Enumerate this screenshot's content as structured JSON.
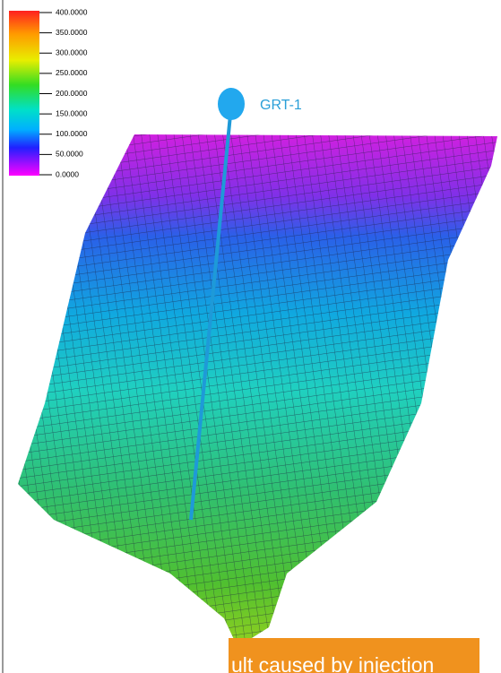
{
  "colorbar": {
    "ticks": [
      "400.0000",
      "350.0000",
      "300.0000",
      "250.0000",
      "200.0000",
      "150.0000",
      "100.0000",
      "50.0000",
      "0.0000"
    ]
  },
  "well": {
    "label": "GRT-1"
  },
  "caption": {
    "text": "ult caused by injection"
  }
}
